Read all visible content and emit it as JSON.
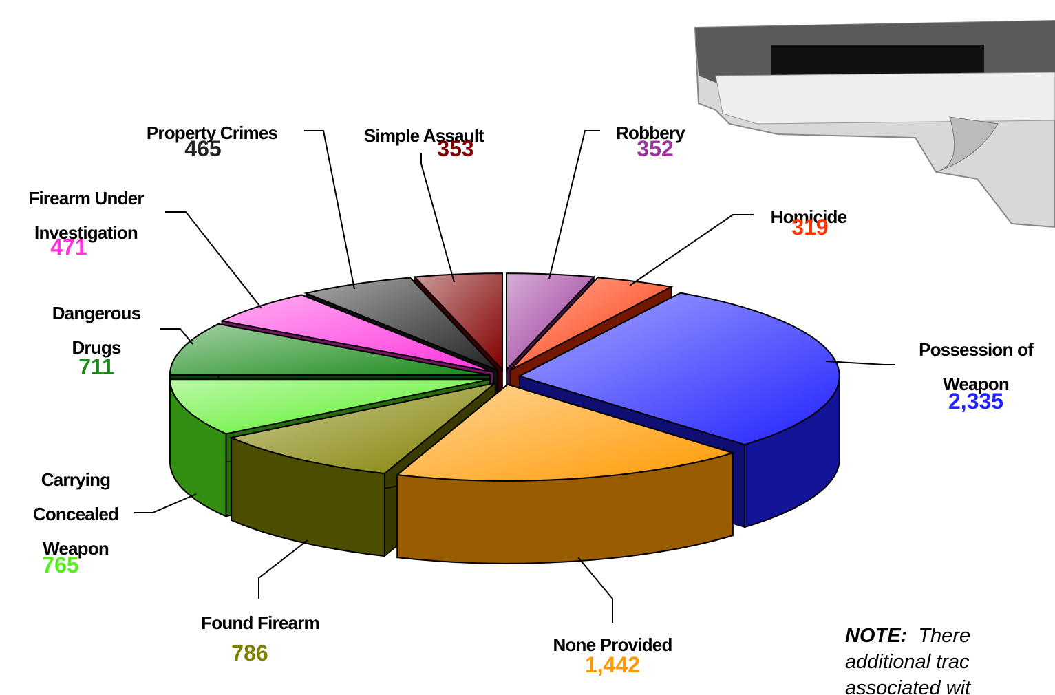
{
  "chart_data": {
    "type": "pie",
    "categories": [
      "Robbery",
      "Homicide",
      "Possession of Weapon",
      "None Provided",
      "Found Firearm",
      "Carrying Concealed Weapon",
      "Dangerous Drugs",
      "Firearm Under Investigation",
      "Property Crimes",
      "Simple Assault"
    ],
    "values": [
      352,
      319,
      2335,
      1442,
      786,
      765,
      711,
      471,
      465,
      353
    ],
    "value_labels": [
      "352",
      "319",
      "2,335",
      "1,442",
      "786",
      "765",
      "711",
      "471",
      "465",
      "353"
    ],
    "colors": [
      "#993399",
      "#ff3300",
      "#2222ff",
      "#ff9900",
      "#808000",
      "#55ee22",
      "#1a8a1a",
      "#ff33dd",
      "#222222",
      "#800000"
    ],
    "note": {
      "label": "NOTE:",
      "lines": [
        "There",
        "additional trac",
        "associated wit"
      ]
    }
  }
}
